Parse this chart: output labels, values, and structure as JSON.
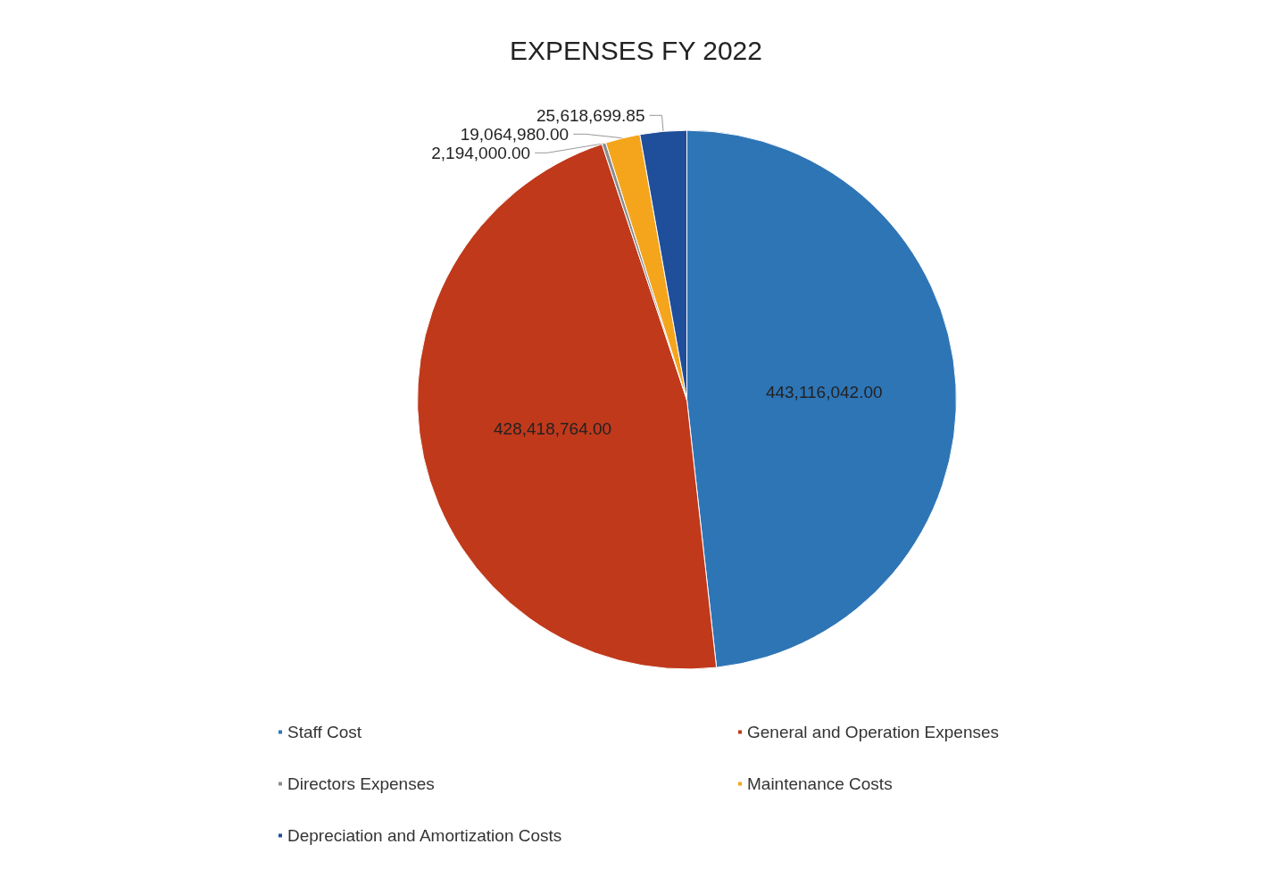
{
  "chart_data": {
    "type": "pie",
    "title": "EXPENSES FY 2022",
    "categories": [
      "Staff Cost",
      "General and Operation Expenses",
      "Directors Expenses",
      "Maintenance Costs",
      "Depreciation and Amortization Costs"
    ],
    "values": [
      443116042.0,
      428418764.0,
      2194000.0,
      19064980.0,
      25618699.85
    ],
    "value_labels": [
      "443,116,042.00",
      "428,418,764.00",
      "2,194,000.00",
      "19,064,980.00",
      "25,618,699.85"
    ],
    "colors": [
      "#2e75b6",
      "#c0391b",
      "#8c8c8c",
      "#f4a51c",
      "#1f4e9a"
    ],
    "legend": "bottom"
  }
}
